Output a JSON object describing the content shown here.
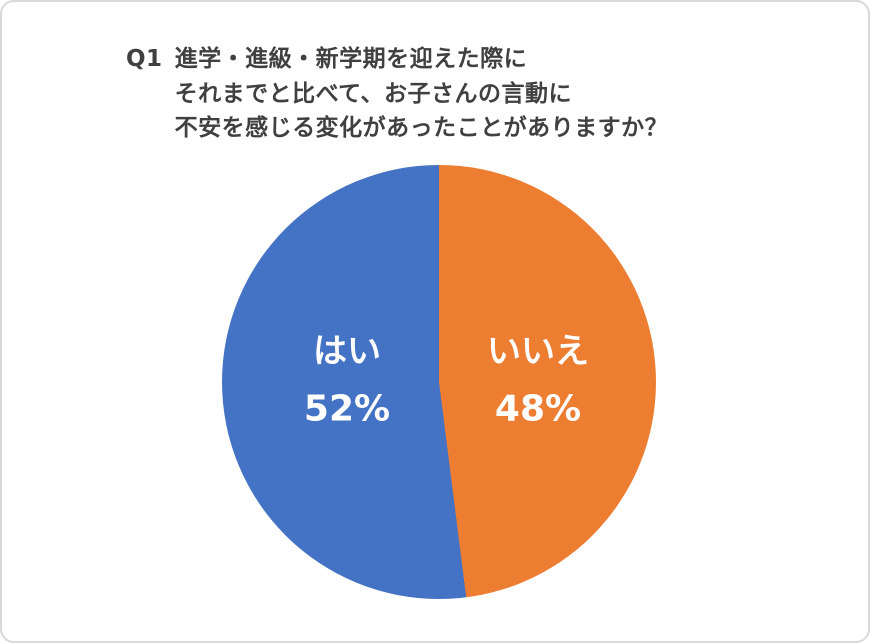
{
  "chart_data": {
    "type": "pie",
    "title": "Q1 進学・進級・新学期を迎えた際に それまでと比べて、お子さんの言動に 不安を感じる変化があったことがありますか？",
    "labels": [
      "はい",
      "いいえ"
    ],
    "values": [
      52,
      48
    ],
    "value_labels": [
      "52%",
      "48%"
    ],
    "colors": [
      "#4472c4",
      "#ed7d31"
    ],
    "legend": "none",
    "data_labels": "inside",
    "start_angle_deg": 0,
    "direction": "clockwise",
    "first_slice_on_right": "いいえ"
  },
  "title": {
    "prefix": "Q1",
    "line1": "進学・進級・新学期を迎えた際に",
    "line2": "それまでと比べて、お子さんの言動に",
    "line3": "不安を感じる変化があったことがありますか？"
  },
  "pie": {
    "left_slice": {
      "label": "はい",
      "pct": "52%",
      "color": "#4472c4"
    },
    "right_slice": {
      "label": "いいえ",
      "pct": "48%",
      "color": "#ed7d31"
    }
  },
  "colors": {
    "title_text": "#404040",
    "label_text": "#ffffff",
    "frame_border": "#d9d9d9",
    "background": "#ffffff"
  }
}
